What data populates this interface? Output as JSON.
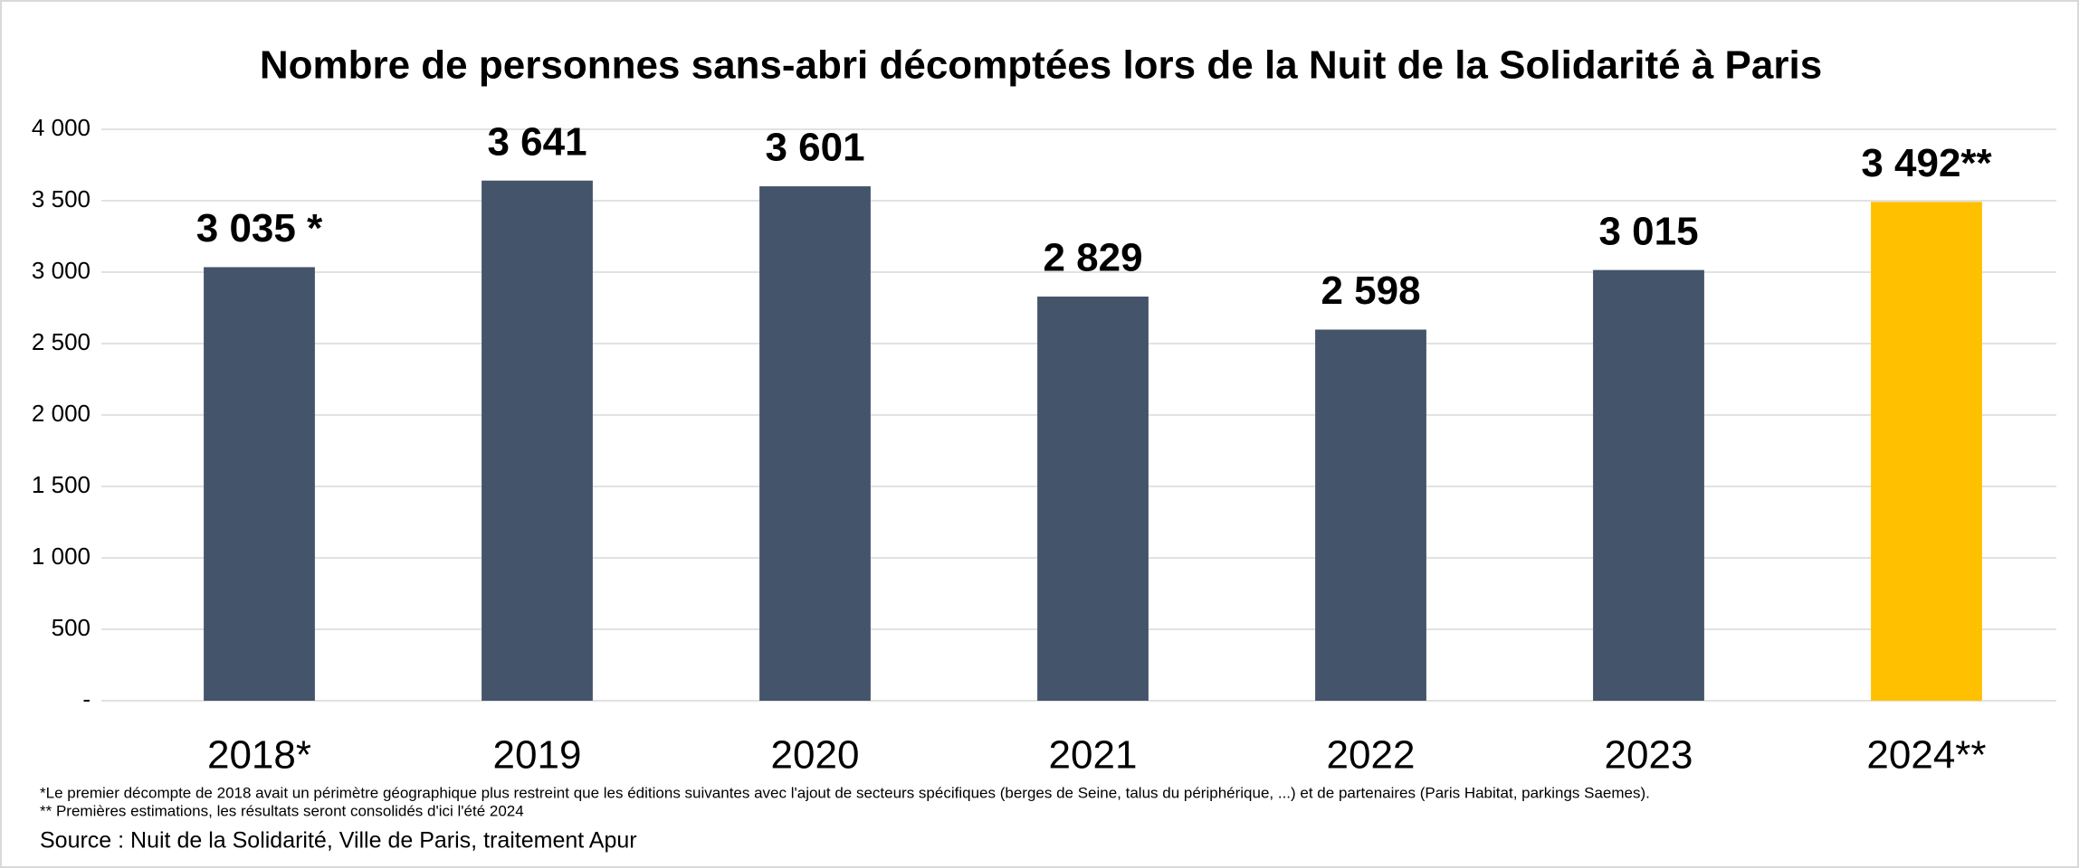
{
  "chart_data": {
    "type": "bar",
    "title": "Nombre de personnes sans-abri décomptées lors de la Nuit de la Solidarité à Paris",
    "categories": [
      "2018*",
      "2019",
      "2020",
      "2021",
      "2022",
      "2023",
      "2024**"
    ],
    "values": [
      3035,
      3641,
      3601,
      2829,
      2598,
      3015,
      3492
    ],
    "value_labels": [
      "3 035 *",
      "3 641",
      "3 601",
      "2 829",
      "2 598",
      "3 015",
      "3 492**"
    ],
    "colors": [
      "#44546a",
      "#44546a",
      "#44546a",
      "#44546a",
      "#44546a",
      "#44546a",
      "#ffc000"
    ],
    "ylim": [
      0,
      4000
    ],
    "yticks": [
      {
        "value": 0,
        "label": "-"
      },
      500,
      {
        "value": 1000,
        "label": "1 000"
      },
      {
        "value": 1500,
        "label": "1 500"
      },
      {
        "value": 2000,
        "label": "2 000"
      },
      {
        "value": 2500,
        "label": "2 500"
      },
      {
        "value": 3000,
        "label": "3 000"
      },
      {
        "value": 3500,
        "label": "3 500"
      },
      {
        "value": 4000,
        "label": "4 000"
      }
    ],
    "grid": true,
    "notes": [
      "*Le premier décompte de 2018 avait un périmètre géographique plus restreint que les éditions suivantes  avec l'ajout de secteurs spécifiques (berges de Seine, talus du périphérique, ...) et de partenaires (Paris Habitat, parkings Saemes).",
      "** Premières estimations, les résultats seront consolidés d'ici l'été 2024"
    ],
    "source": "Source : Nuit de la Solidarité, Ville de Paris, traitement Apur"
  }
}
